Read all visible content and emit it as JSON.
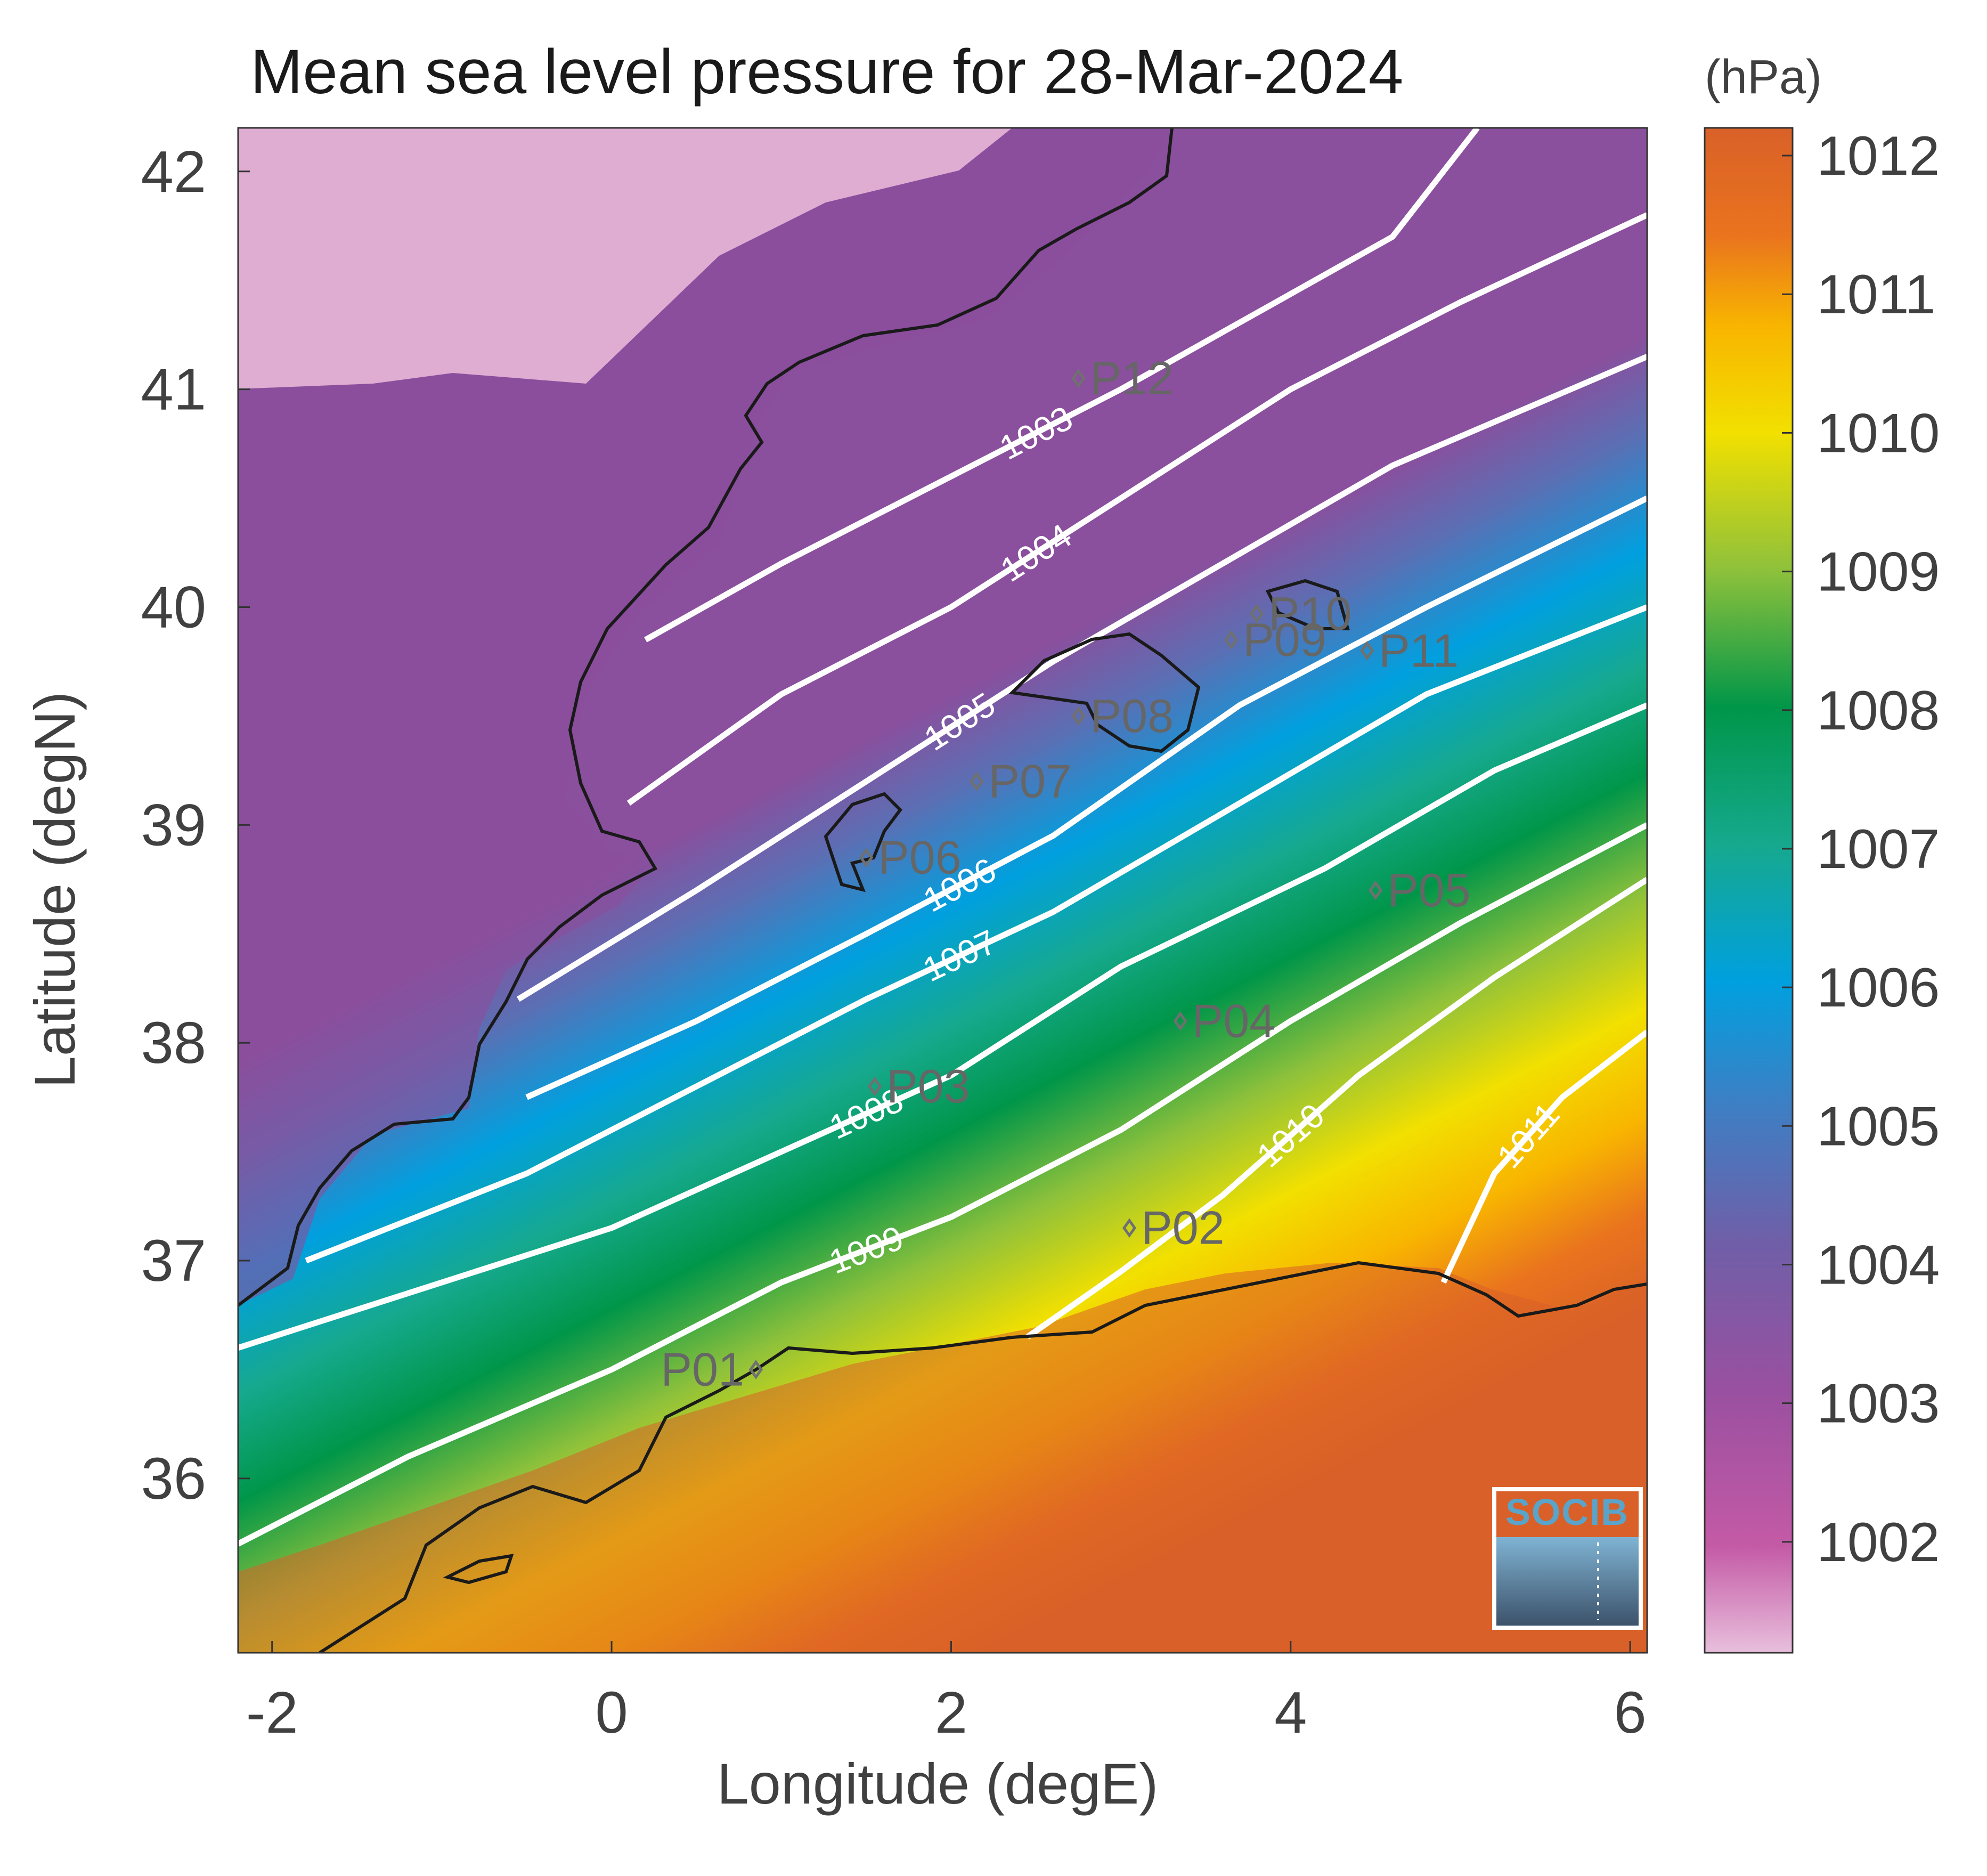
{
  "title": "Mean sea level pressure for 28-Mar-2024",
  "units_label": "(hPa)",
  "logo": {
    "text": "SOCIB"
  },
  "colors": {
    "coastline": "#1a1a1a",
    "contour": "#ffffff",
    "station": "#707070",
    "axis": "#333333",
    "land_inland_low": "#e8b7d8",
    "colormap": [
      "#e8bfdc",
      "#c45aa6",
      "#8a4f9d",
      "#5b6fb4",
      "#00a0df",
      "#16a98e",
      "#009649",
      "#8ec13b",
      "#f2e000",
      "#f8b500",
      "#e9731e",
      "#d96128"
    ]
  },
  "chart_data": {
    "type": "heatmap",
    "variable": "Mean sea level pressure",
    "date": "28-Mar-2024",
    "xlabel": "Longitude (degE)",
    "ylabel": "Latitude (degN)",
    "xlim": [
      -2.2,
      6.1
    ],
    "ylim": [
      35.2,
      42.2
    ],
    "xticks": [
      -2,
      0,
      2,
      4,
      6
    ],
    "xtick_labels": [
      "-2",
      "0",
      "2",
      "4",
      "6"
    ],
    "yticks": [
      36,
      37,
      38,
      39,
      40,
      41,
      42
    ],
    "ytick_labels": [
      "36",
      "37",
      "38",
      "39",
      "40",
      "41",
      "42"
    ],
    "colorbar": {
      "label": "(hPa)",
      "range": [
        1001.2,
        1012.2
      ],
      "ticks": [
        1002,
        1003,
        1004,
        1005,
        1006,
        1007,
        1008,
        1009,
        1010,
        1011,
        1012
      ],
      "tick_labels": [
        "1002",
        "1003",
        "1004",
        "1005",
        "1006",
        "1007",
        "1008",
        "1009",
        "1010",
        "1011",
        "1012"
      ]
    },
    "contours": [
      {
        "level": 1003,
        "label": "1003",
        "points": [
          [
            0.2,
            39.85
          ],
          [
            1.0,
            40.2
          ],
          [
            2.0,
            40.6
          ],
          [
            3.0,
            41.0
          ],
          [
            3.8,
            41.35
          ],
          [
            4.6,
            41.7
          ],
          [
            5.1,
            42.2
          ]
        ]
      },
      {
        "level": 1004,
        "label": "1004",
        "points": [
          [
            0.1,
            39.1
          ],
          [
            1.0,
            39.6
          ],
          [
            2.0,
            40.0
          ],
          [
            3.0,
            40.5
          ],
          [
            4.0,
            41.0
          ],
          [
            5.0,
            41.4
          ],
          [
            6.1,
            41.8
          ]
        ]
      },
      {
        "level": 1005,
        "label": "1005",
        "points": [
          [
            -0.55,
            38.2
          ],
          [
            0.5,
            38.7
          ],
          [
            1.5,
            39.2
          ],
          [
            2.6,
            39.75
          ],
          [
            3.6,
            40.2
          ],
          [
            4.6,
            40.65
          ],
          [
            6.1,
            41.15
          ]
        ]
      },
      {
        "level": 1006,
        "label": "1006",
        "points": [
          [
            -0.5,
            37.75
          ],
          [
            0.5,
            38.1
          ],
          [
            1.5,
            38.5
          ],
          [
            2.6,
            38.95
          ],
          [
            3.7,
            39.55
          ],
          [
            4.8,
            40.0
          ],
          [
            6.1,
            40.5
          ]
        ]
      },
      {
        "level": 1007,
        "label": "1007",
        "points": [
          [
            -1.8,
            37.0
          ],
          [
            -0.5,
            37.4
          ],
          [
            0.5,
            37.8
          ],
          [
            1.5,
            38.2
          ],
          [
            2.6,
            38.6
          ],
          [
            3.7,
            39.1
          ],
          [
            4.8,
            39.6
          ],
          [
            6.1,
            40.0
          ]
        ]
      },
      {
        "level": 1008,
        "label": "1008",
        "points": [
          [
            -2.2,
            36.6
          ],
          [
            -1.2,
            36.85
          ],
          [
            0.0,
            37.15
          ],
          [
            1.0,
            37.5
          ],
          [
            2.0,
            37.85
          ],
          [
            3.0,
            38.35
          ],
          [
            4.2,
            38.8
          ],
          [
            5.2,
            39.25
          ],
          [
            6.1,
            39.55
          ]
        ]
      },
      {
        "level": 1009,
        "label": "1009",
        "points": [
          [
            -2.2,
            35.7
          ],
          [
            -1.2,
            36.1
          ],
          [
            0.0,
            36.5
          ],
          [
            1.0,
            36.9
          ],
          [
            2.0,
            37.2
          ],
          [
            3.0,
            37.6
          ],
          [
            4.0,
            38.1
          ],
          [
            5.0,
            38.55
          ],
          [
            6.1,
            39.0
          ]
        ]
      },
      {
        "level": 1010,
        "label": "1010",
        "points": [
          [
            2.45,
            36.65
          ],
          [
            3.0,
            36.95
          ],
          [
            3.6,
            37.3
          ],
          [
            4.4,
            37.85
          ],
          [
            5.2,
            38.3
          ],
          [
            6.1,
            38.75
          ]
        ]
      },
      {
        "level": 1011,
        "label": "1011",
        "points": [
          [
            4.9,
            36.9
          ],
          [
            5.2,
            37.4
          ],
          [
            5.6,
            37.75
          ],
          [
            6.1,
            38.05
          ]
        ]
      }
    ],
    "stations": [
      {
        "id": "P01",
        "lon": 0.85,
        "lat": 36.5
      },
      {
        "id": "P02",
        "lon": 3.05,
        "lat": 37.15
      },
      {
        "id": "P03",
        "lon": 1.55,
        "lat": 37.8
      },
      {
        "id": "P04",
        "lon": 3.35,
        "lat": 38.1
      },
      {
        "id": "P05",
        "lon": 4.5,
        "lat": 38.7
      },
      {
        "id": "P06",
        "lon": 1.5,
        "lat": 38.85
      },
      {
        "id": "P07",
        "lon": 2.15,
        "lat": 39.2
      },
      {
        "id": "P08",
        "lon": 2.75,
        "lat": 39.5
      },
      {
        "id": "P09",
        "lon": 3.65,
        "lat": 39.85
      },
      {
        "id": "P10",
        "lon": 3.8,
        "lat": 39.97
      },
      {
        "id": "P11",
        "lon": 4.45,
        "lat": 39.8
      },
      {
        "id": "P12",
        "lon": 2.75,
        "lat": 41.05
      }
    ]
  }
}
